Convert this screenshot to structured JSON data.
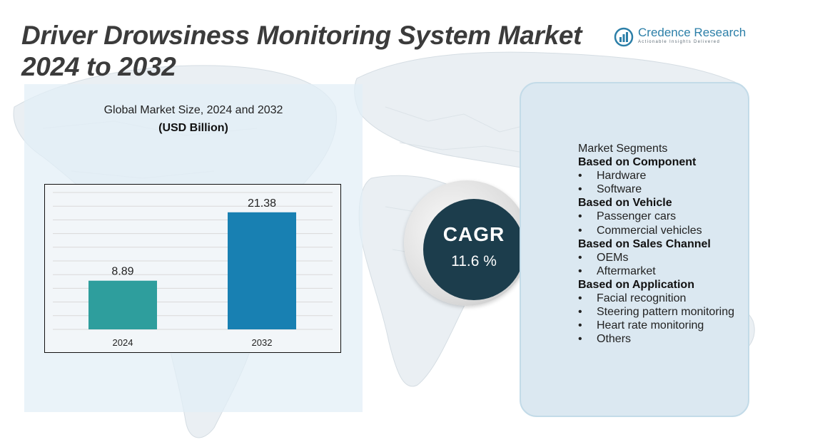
{
  "title": {
    "line1": "Driver Drowsiness Monitoring System Market",
    "line2": "2024 to 2032"
  },
  "logo": {
    "name": "Credence Research",
    "tagline": "Actionable Insights Delivered"
  },
  "chart": {
    "title": "Global Market Size, 2024 and 2032",
    "unit": "(USD Billion)"
  },
  "chart_data": {
    "type": "bar",
    "title": "Global Market Size, 2024 and 2032",
    "ylabel": "(USD Billion)",
    "xlabel": "",
    "categories": [
      "2024",
      "2032"
    ],
    "values": [
      8.89,
      21.38
    ],
    "value_labels": [
      "8.89",
      "21.38"
    ],
    "ylim": [
      0,
      25
    ],
    "grid": true,
    "colors": [
      "#2e9e9d",
      "#1880b2"
    ]
  },
  "cagr": {
    "label": "CAGR",
    "value": "11.6 %"
  },
  "segments": {
    "heading": "Market Segments",
    "groups": [
      {
        "title": "Based on Component",
        "items": [
          "Hardware",
          "Software"
        ]
      },
      {
        "title": "Based on Vehicle",
        "items": [
          "Passenger cars",
          "Commercial vehicles"
        ]
      },
      {
        "title": "Based on Sales Channel",
        "items": [
          "OEMs",
          "Aftermarket"
        ]
      },
      {
        "title": "Based on Application",
        "items": [
          "Facial recognition",
          "Steering pattern monitoring",
          "Heart rate monitoring",
          "Others"
        ]
      }
    ]
  },
  "colors": {
    "title_text": "#3b3b3b",
    "brand_blue": "#2c7fa8",
    "cagr_circle": "#1c3d4c",
    "panel_bg": "#dbe8f1"
  }
}
